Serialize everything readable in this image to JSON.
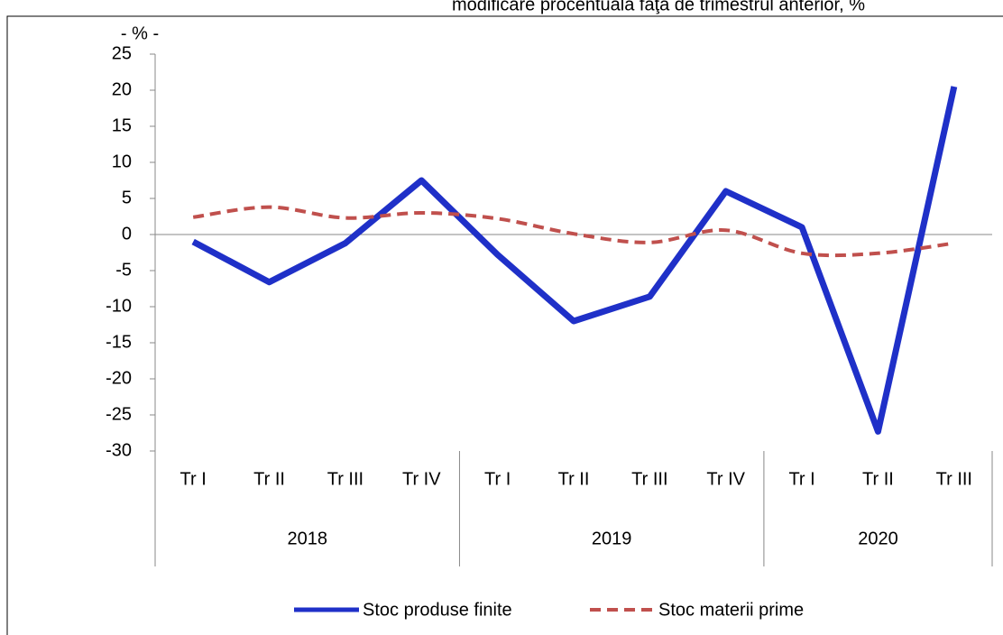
{
  "chart_data": {
    "type": "line",
    "title": "modificare procentuală faţă de trimestrul anterior, %",
    "y_label": "- % -",
    "groups": [
      {
        "label": "2018",
        "categories": [
          "Tr I",
          "Tr II",
          "Tr III",
          "Tr IV"
        ]
      },
      {
        "label": "2019",
        "categories": [
          "Tr I",
          "Tr II",
          "Tr III",
          "Tr IV"
        ]
      },
      {
        "label": "2020",
        "categories": [
          "Tr I",
          "Tr II",
          "Tr III"
        ]
      }
    ],
    "series": [
      {
        "name": "Stoc produse finite",
        "color": "#1f30c8",
        "style": "solid",
        "values": [
          -1,
          -6.6,
          -1.2,
          7.5,
          -2.8,
          -12,
          -8.6,
          6,
          1,
          -27.3,
          20.5
        ]
      },
      {
        "name": "Stoc materii prime",
        "color": "#c0504d",
        "style": "dashed",
        "smooth": true,
        "values": [
          2.4,
          3.8,
          2.3,
          3.0,
          2.2,
          0.1,
          -1.1,
          0.6,
          -2.6,
          -2.6,
          -1.2
        ]
      }
    ],
    "ylim": [
      -30,
      25
    ],
    "yticks": [
      25,
      20,
      15,
      10,
      5,
      0,
      -5,
      -10,
      -15,
      -20,
      -25,
      -30
    ],
    "legend": "bottom"
  }
}
